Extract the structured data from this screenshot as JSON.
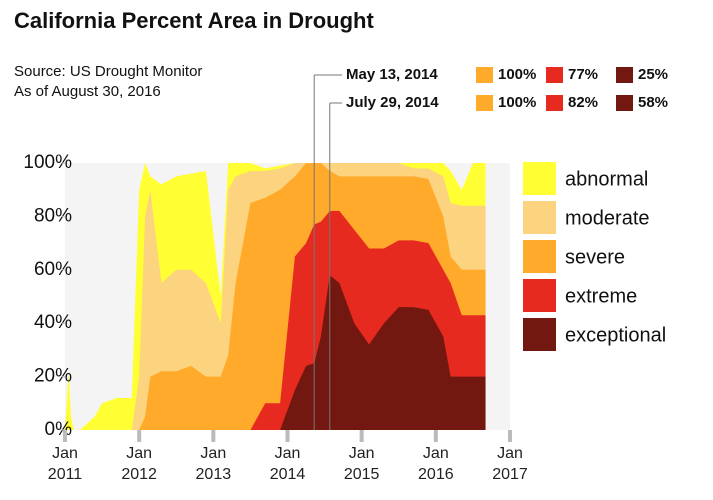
{
  "chart_data": {
    "type": "area",
    "title": "California Percent Area in Drought",
    "source": "Source: US Drought Monitor",
    "note": "As of August 30, 2016",
    "x": [
      2011.0,
      2011.05,
      2011.08,
      2011.12,
      2011.2,
      2011.4,
      2011.5,
      2011.7,
      2011.9,
      2012.0,
      2012.08,
      2012.15,
      2012.3,
      2012.5,
      2012.7,
      2012.9,
      2013.1,
      2013.2,
      2013.3,
      2013.5,
      2013.7,
      2013.9,
      2014.1,
      2014.25,
      2014.36,
      2014.45,
      2014.57,
      2014.7,
      2014.9,
      2015.1,
      2015.3,
      2015.5,
      2015.7,
      2015.9,
      2016.1,
      2016.2,
      2016.35,
      2016.5,
      2016.67
    ],
    "series": [
      {
        "name": "abnormal",
        "color": "#ffff33",
        "values": [
          0,
          22,
          5,
          0,
          0,
          5,
          10,
          12,
          12,
          90,
          100,
          95,
          92,
          95,
          96,
          97,
          50,
          100,
          100,
          100,
          98,
          99,
          100,
          100,
          100,
          100,
          100,
          100,
          100,
          100,
          100,
          100,
          100,
          100,
          100,
          97,
          90,
          100,
          100
        ]
      },
      {
        "name": "moderate",
        "color": "#fcd37f",
        "values": [
          0,
          0,
          0,
          0,
          0,
          0,
          0,
          0,
          0,
          20,
          80,
          90,
          55,
          60,
          60,
          55,
          40,
          90,
          95,
          97,
          97,
          98,
          100,
          100,
          100,
          100,
          100,
          100,
          100,
          100,
          100,
          100,
          98,
          98,
          95,
          85,
          84,
          84,
          84
        ]
      },
      {
        "name": "severe",
        "color": "#ffaa2a",
        "values": [
          0,
          0,
          0,
          0,
          0,
          0,
          0,
          0,
          0,
          0,
          5,
          20,
          22,
          22,
          24,
          20,
          20,
          28,
          55,
          85,
          87,
          90,
          95,
          100,
          100,
          100,
          97,
          95,
          95,
          95,
          95,
          95,
          95,
          94,
          80,
          65,
          60,
          60,
          60
        ]
      },
      {
        "name": "extreme",
        "color": "#e62a1f",
        "values": [
          0,
          0,
          0,
          0,
          0,
          0,
          0,
          0,
          0,
          0,
          0,
          0,
          0,
          0,
          0,
          0,
          0,
          0,
          0,
          0,
          10,
          10,
          65,
          70,
          77,
          78,
          82,
          82,
          75,
          68,
          68,
          71,
          71,
          70,
          60,
          55,
          43,
          43,
          43
        ]
      },
      {
        "name": "exceptional",
        "color": "#731811",
        "values": [
          0,
          0,
          0,
          0,
          0,
          0,
          0,
          0,
          0,
          0,
          0,
          0,
          0,
          0,
          0,
          0,
          0,
          0,
          0,
          0,
          0,
          0,
          15,
          24,
          25,
          35,
          58,
          55,
          40,
          32,
          40,
          46,
          46,
          45,
          35,
          20,
          20,
          20,
          20
        ]
      }
    ],
    "xlim": [
      2011,
      2017
    ],
    "xticks": [
      {
        "value": 2011,
        "label": "Jan 2011"
      },
      {
        "value": 2012,
        "label": "Jan 2012"
      },
      {
        "value": 2013,
        "label": "Jan 2013"
      },
      {
        "value": 2014,
        "label": "Jan 2014"
      },
      {
        "value": 2015,
        "label": "Jan 2015"
      },
      {
        "value": 2016,
        "label": "Jan 2016"
      },
      {
        "value": 2017,
        "label": "Jan 2017"
      }
    ],
    "ylim": [
      0,
      100
    ],
    "yticks": [
      {
        "value": 0,
        "label": "0%"
      },
      {
        "value": 20,
        "label": "20%"
      },
      {
        "value": 40,
        "label": "40%"
      },
      {
        "value": 60,
        "label": "60%"
      },
      {
        "value": 80,
        "label": "80%"
      },
      {
        "value": 100,
        "label": "100%"
      }
    ],
    "annotations": [
      {
        "label": "May 13, 2014",
        "x": 2014.36,
        "values": [
          100,
          77,
          25
        ],
        "value_labels": [
          "100%",
          "77%",
          "25%"
        ]
      },
      {
        "label": "July 29, 2014",
        "x": 2014.57,
        "values": [
          100,
          82,
          58
        ],
        "value_labels": [
          "100%",
          "82%",
          "58%"
        ]
      }
    ]
  }
}
